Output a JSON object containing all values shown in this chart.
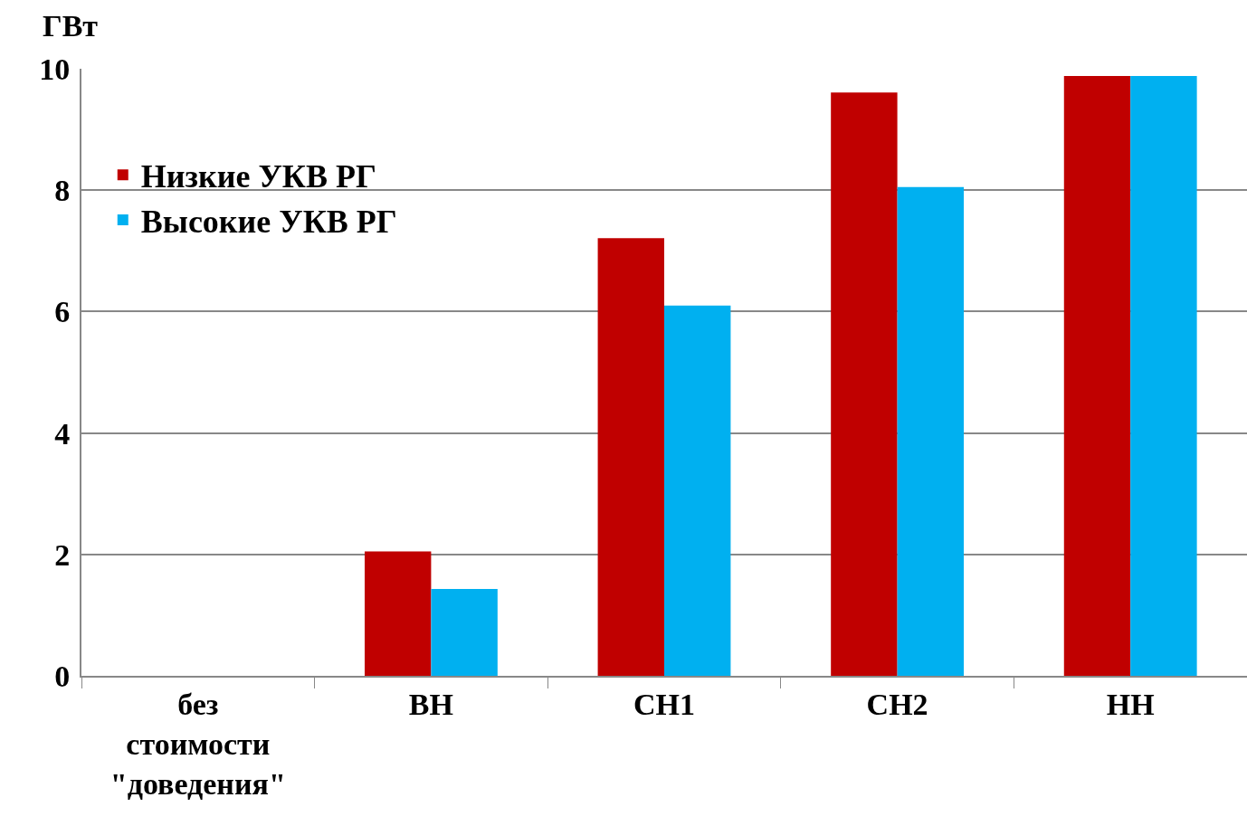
{
  "chart_data": {
    "type": "bar",
    "ylabel": "ГВт",
    "categories": [
      "без стоимости \"доведения\"",
      "ВН",
      "СН1",
      "СН2",
      "НН"
    ],
    "series": [
      {
        "name": "Низкие УКВ РГ",
        "color": "#c00000",
        "values": [
          0,
          2.05,
          7.21,
          9.61,
          9.88
        ]
      },
      {
        "name": "Высокие УКВ РГ",
        "color": "#00b0f0",
        "values": [
          0,
          1.43,
          6.1,
          8.05,
          9.88
        ]
      }
    ],
    "ylim": [
      0,
      10
    ],
    "yticks": [
      0,
      2,
      4,
      6,
      8,
      10
    ],
    "grid": "y",
    "legend": "top left"
  }
}
